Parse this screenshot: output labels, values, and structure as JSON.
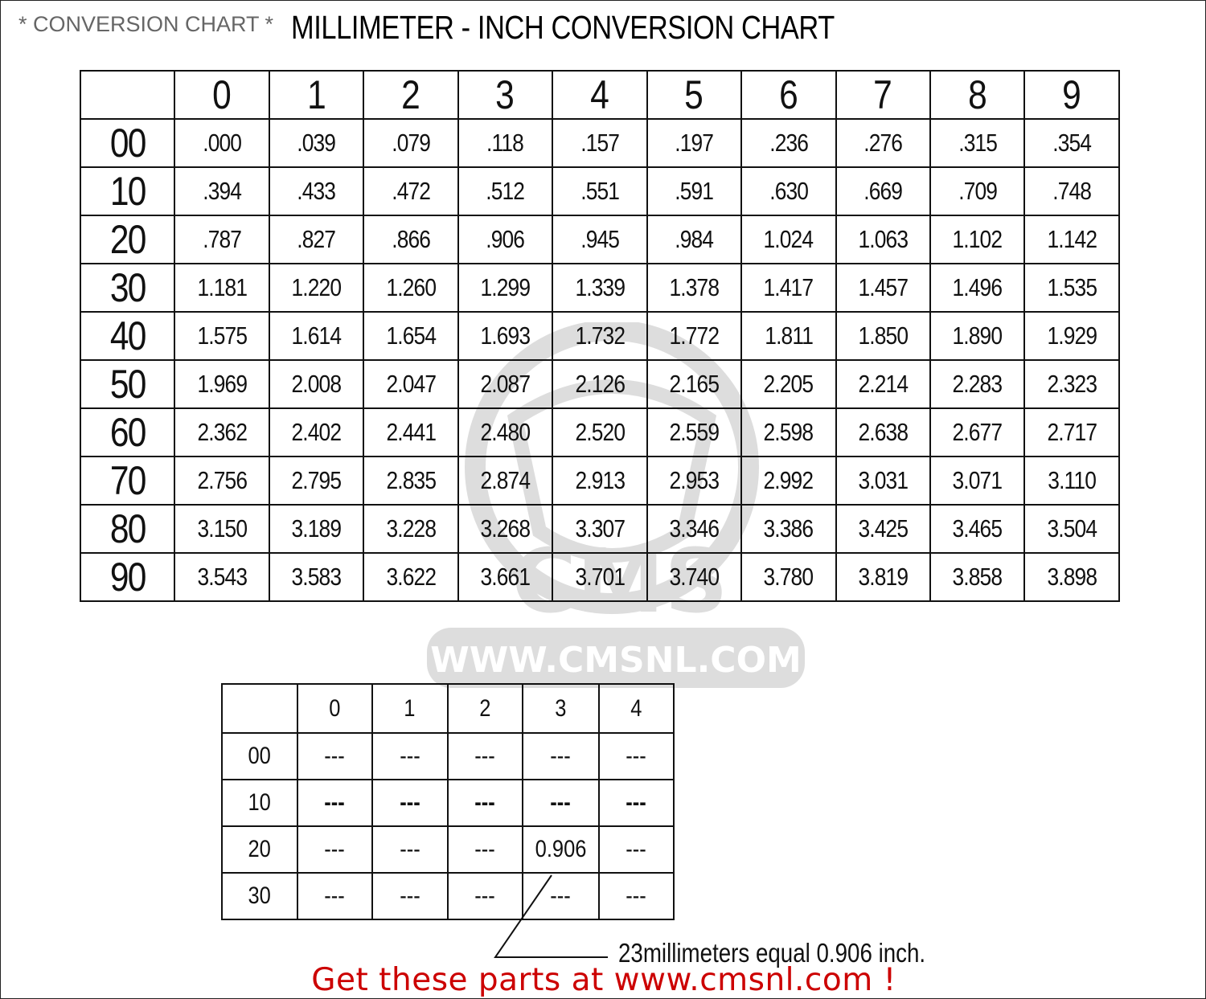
{
  "header": {
    "subtitle": "* CONVERSION CHART *",
    "title": "MILLIMETER - INCH CONVERSION CHART"
  },
  "main_table": {
    "column_headers": [
      "0",
      "1",
      "2",
      "3",
      "4",
      "5",
      "6",
      "7",
      "8",
      "9"
    ],
    "rows": [
      {
        "label": "00",
        "values": [
          ".000",
          ".039",
          ".079",
          ".118",
          ".157",
          ".197",
          ".236",
          ".276",
          ".315",
          ".354"
        ]
      },
      {
        "label": "10",
        "values": [
          ".394",
          ".433",
          ".472",
          ".512",
          ".551",
          ".591",
          ".630",
          ".669",
          ".709",
          ".748"
        ]
      },
      {
        "label": "20",
        "values": [
          ".787",
          ".827",
          ".866",
          ".906",
          ".945",
          ".984",
          "1.024",
          "1.063",
          "1.102",
          "1.142"
        ]
      },
      {
        "label": "30",
        "values": [
          "1.181",
          "1.220",
          "1.260",
          "1.299",
          "1.339",
          "1.378",
          "1.417",
          "1.457",
          "1.496",
          "1.535"
        ]
      },
      {
        "label": "40",
        "values": [
          "1.575",
          "1.614",
          "1.654",
          "1.693",
          "1.732",
          "1.772",
          "1.811",
          "1.850",
          "1.890",
          "1.929"
        ]
      },
      {
        "label": "50",
        "values": [
          "1.969",
          "2.008",
          "2.047",
          "2.087",
          "2.126",
          "2.165",
          "2.205",
          "2.214",
          "2.283",
          "2.323"
        ]
      },
      {
        "label": "60",
        "values": [
          "2.362",
          "2.402",
          "2.441",
          "2.480",
          "2.520",
          "2.559",
          "2.598",
          "2.638",
          "2.677",
          "2.717"
        ]
      },
      {
        "label": "70",
        "values": [
          "2.756",
          "2.795",
          "2.835",
          "2.874",
          "2.913",
          "2.953",
          "2.992",
          "3.031",
          "3.071",
          "3.110"
        ]
      },
      {
        "label": "80",
        "values": [
          "3.150",
          "3.189",
          "3.228",
          "3.268",
          "3.307",
          "3.346",
          "3.386",
          "3.425",
          "3.465",
          "3.504"
        ]
      },
      {
        "label": "90",
        "values": [
          "3.543",
          "3.583",
          "3.622",
          "3.661",
          "3.701",
          "3.740",
          "3.780",
          "3.819",
          "3.858",
          "3.898"
        ]
      }
    ]
  },
  "example_table": {
    "column_headers": [
      "0",
      "1",
      "2",
      "3",
      "4"
    ],
    "rows": [
      {
        "label": "00",
        "values": [
          "---",
          "---",
          "---",
          "---",
          "---"
        ]
      },
      {
        "label": "10",
        "values": [
          "---",
          "---",
          "---",
          "---",
          "---"
        ],
        "bold": true
      },
      {
        "label": "20",
        "values": [
          "---",
          "---",
          "---",
          "0.906",
          "---"
        ]
      },
      {
        "label": "30",
        "values": [
          "---",
          "---",
          "---",
          "---",
          "---"
        ]
      }
    ]
  },
  "callout": {
    "text": "23millimeters equal 0.906 inch."
  },
  "promo": {
    "text": "Get these parts at www.cmsnl.com !",
    "color": "#cc0000"
  },
  "watermark": {
    "logo_text": "CMS",
    "url_text": "WWW.CMSNL.COM"
  }
}
